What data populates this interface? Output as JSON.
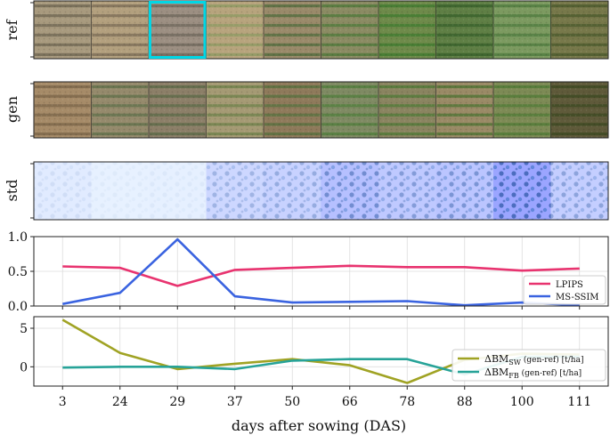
{
  "rows": {
    "ref": "ref",
    "gen": "gen",
    "std": "std"
  },
  "highlight_index": 2,
  "highlight_color": "#00d7e6",
  "ref_tiles": [
    {
      "base": "#a89a7e",
      "row": "#6e6452"
    },
    {
      "base": "#b3a07e",
      "row": "#7a6b55"
    },
    {
      "base": "#9c8f82",
      "row": "#6d655a"
    },
    {
      "base": "#b7a47d",
      "row": "#8c9a62"
    },
    {
      "base": "#9a8a6a",
      "row": "#4f6b3c"
    },
    {
      "base": "#8b8b63",
      "row": "#4c7838"
    },
    {
      "base": "#6e8a4a",
      "row": "#3f7a2f"
    },
    {
      "base": "#5f7f45",
      "row": "#355f2a"
    },
    {
      "base": "#7c9a60",
      "row": "#4d7a3d"
    },
    {
      "base": "#77784a",
      "row": "#4a5a2c"
    }
  ],
  "gen_tiles": [
    {
      "base": "#a68b68",
      "row": "#7a6448"
    },
    {
      "base": "#958a6c",
      "row": "#5f6f49"
    },
    {
      "base": "#8c7f68",
      "row": "#5b6a47"
    },
    {
      "base": "#a59a74",
      "row": "#6e8049"
    },
    {
      "base": "#8f7a5b",
      "row": "#56723d"
    },
    {
      "base": "#7f8a63",
      "row": "#4f7d3b"
    },
    {
      "base": "#8a8460",
      "row": "#4d7a35"
    },
    {
      "base": "#9a8a66",
      "row": "#4b7232"
    },
    {
      "base": "#7d8a55",
      "row": "#4f7a35"
    },
    {
      "base": "#5f5a3a",
      "row": "#3b4a22"
    }
  ],
  "std_tiles": [
    0.12,
    0.06,
    0.07,
    0.35,
    0.4,
    0.6,
    0.5,
    0.55,
    0.9,
    0.45
  ],
  "chart_data": [
    {
      "type": "line",
      "categories": [
        "3",
        "24",
        "29",
        "37",
        "50",
        "66",
        "78",
        "88",
        "100",
        "111"
      ],
      "ylim": [
        0,
        1.0
      ],
      "yticks": [
        "0.0",
        "0.5",
        "1.0"
      ],
      "ytick_values": [
        0.0,
        0.5,
        1.0
      ],
      "grid": true,
      "legend": "bottom-right",
      "series": [
        {
          "name": "LPIPS",
          "color": "#e8336f",
          "values": [
            0.57,
            0.55,
            0.29,
            0.52,
            0.55,
            0.58,
            0.56,
            0.56,
            0.51,
            0.54
          ]
        },
        {
          "name": "MS-SSIM",
          "color": "#3a63e0",
          "values": [
            0.03,
            0.19,
            0.96,
            0.14,
            0.05,
            0.06,
            0.07,
            0.01,
            0.05,
            0.01
          ]
        }
      ]
    },
    {
      "type": "line",
      "categories": [
        "3",
        "24",
        "29",
        "37",
        "50",
        "66",
        "78",
        "88",
        "100",
        "111"
      ],
      "ylim": [
        -2.5,
        6.5
      ],
      "yticks": [
        "0",
        "5"
      ],
      "ytick_values": [
        0,
        5
      ],
      "grid": true,
      "legend": "bottom-right",
      "xlabel": "days after sowing (DAS)",
      "series": [
        {
          "name": "ΔBM_SW",
          "label_main": "ΔBM",
          "label_sub": "SW",
          "label_rest": " (gen-ref) [t/ha]",
          "color": "#a0a324",
          "values": [
            6.1,
            1.8,
            -0.3,
            0.4,
            1.0,
            0.2,
            -2.1,
            0.9,
            1.7,
            1.6
          ]
        },
        {
          "name": "ΔBM_FB",
          "label_main": "ΔBM",
          "label_sub": "FB",
          "label_rest": " (gen-ref) [t/ha]",
          "color": "#27a398",
          "values": [
            -0.1,
            0.0,
            0.0,
            -0.3,
            0.8,
            1.0,
            1.0,
            -1.0,
            1.3,
            1.3
          ]
        }
      ]
    }
  ]
}
